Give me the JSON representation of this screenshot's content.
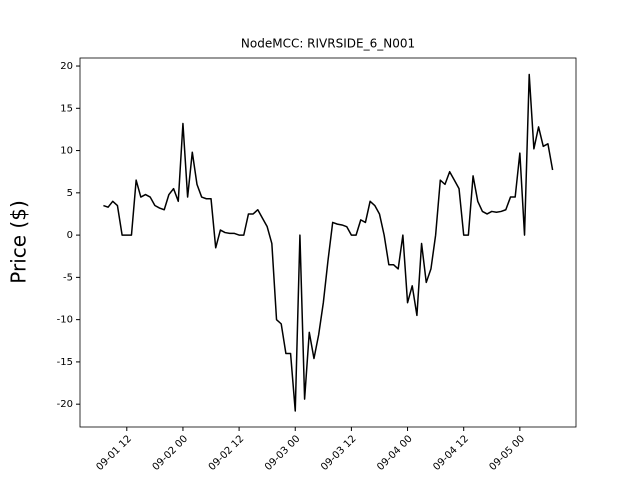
{
  "chart_data": {
    "type": "line",
    "title": "NodeMCC: RIVRSIDE_6_N001",
    "y_label": "Price ($)",
    "x": [
      "09-01 07",
      "09-01 08",
      "09-01 09",
      "09-01 10",
      "09-01 11",
      "09-01 12",
      "09-01 13",
      "09-01 14",
      "09-01 15",
      "09-01 16",
      "09-01 17",
      "09-01 18",
      "09-01 19",
      "09-01 20",
      "09-01 21",
      "09-01 22",
      "09-01 23",
      "09-02 00",
      "09-02 01",
      "09-02 02",
      "09-02 03",
      "09-02 04",
      "09-02 05",
      "09-02 06",
      "09-02 07",
      "09-02 08",
      "09-02 09",
      "09-02 10",
      "09-02 11",
      "09-02 12",
      "09-02 13",
      "09-02 14",
      "09-02 15",
      "09-02 16",
      "09-02 17",
      "09-02 18",
      "09-02 19",
      "09-02 20",
      "09-02 21",
      "09-02 22",
      "09-02 23",
      "09-03 00",
      "09-03 01",
      "09-03 02",
      "09-03 03",
      "09-03 04",
      "09-03 05",
      "09-03 06",
      "09-03 07",
      "09-03 08",
      "09-03 09",
      "09-03 10",
      "09-03 11",
      "09-03 12",
      "09-03 13",
      "09-03 14",
      "09-03 15",
      "09-03 16",
      "09-03 17",
      "09-03 18",
      "09-03 19",
      "09-03 20",
      "09-03 21",
      "09-03 22",
      "09-03 23",
      "09-04 00",
      "09-04 01",
      "09-04 02",
      "09-04 03",
      "09-04 04",
      "09-04 05",
      "09-04 06",
      "09-04 07",
      "09-04 08",
      "09-04 09",
      "09-04 10",
      "09-04 11",
      "09-04 12",
      "09-04 13",
      "09-04 14",
      "09-04 15",
      "09-04 16",
      "09-04 17",
      "09-04 18",
      "09-04 19",
      "09-04 20",
      "09-04 21",
      "09-04 22",
      "09-04 23",
      "09-05 00",
      "09-05 01",
      "09-05 02",
      "09-05 03",
      "09-05 04",
      "09-05 05",
      "09-05 06",
      "09-05 07"
    ],
    "series": [
      {
        "color": "#000000",
        "values": [
          3.5,
          3.3,
          4.0,
          3.5,
          0,
          0,
          0,
          6.5,
          4.5,
          4.8,
          4.5,
          3.5,
          3.2,
          3.0,
          4.8,
          5.5,
          4.0,
          13.2,
          4.5,
          9.8,
          6,
          4.5,
          4.3,
          4.3,
          -1.5,
          0.6,
          0.3,
          0.2,
          0.2,
          0,
          0,
          2.5,
          2.5,
          3.0,
          2.0,
          1.0,
          -1,
          -10,
          -10.5,
          -14,
          -14,
          -20.8,
          0,
          -19.4,
          -11.5,
          -14.6,
          -11.8,
          -8,
          -3,
          1.5,
          1.3,
          1.2,
          1.0,
          0,
          0,
          1.8,
          1.5,
          4.0,
          3.5,
          2.5,
          0,
          -3.5,
          -3.5,
          -4.0,
          0,
          -8,
          -6,
          -9.5,
          -1,
          -5.6,
          -4,
          0,
          6.5,
          6,
          7.5,
          6.5,
          5.5,
          0,
          0,
          7,
          4,
          2.8,
          2.5,
          2.8,
          2.7,
          2.8,
          3,
          4.5,
          4.5,
          9.7,
          0,
          19,
          10.2,
          12.8,
          10.5,
          10.8,
          7.7
        ]
      }
    ],
    "xlim": [
      "09-01 02",
      "09-05 12"
    ],
    "xticks": [
      "09-01 12",
      "09-02 00",
      "09-02 12",
      "09-03 00",
      "09-03 12",
      "09-04 00",
      "09-04 12",
      "09-05 00"
    ],
    "ylim": [
      -22.7,
      20.95
    ],
    "yticks": [
      -20,
      -15,
      -10,
      -5,
      0,
      5,
      10,
      15,
      20
    ]
  }
}
